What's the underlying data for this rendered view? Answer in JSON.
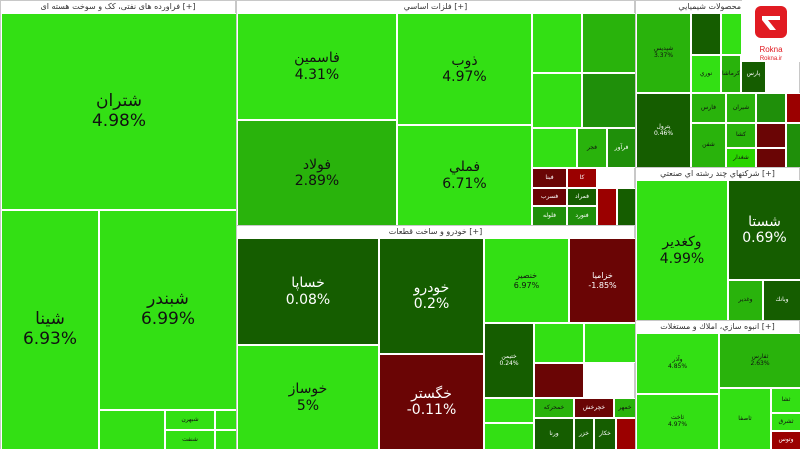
{
  "colors": {
    "bright": "#33e014",
    "light": "#2ad400",
    "mid": "#29b30c",
    "green": "#1f8f0a",
    "dark": "#155d00",
    "red": "#9b0000",
    "darkred": "#6a0505"
  },
  "panels": [
    {
      "id": "p1",
      "title": "فراورده های نفتی، کک و سوخت هسته ای [+]",
      "tiles": [
        {
          "sym": "شتران",
          "pct": "4.98%",
          "c": "bright",
          "s": "s-xl"
        },
        {
          "sym": "شينا",
          "pct": "6.93%",
          "c": "bright",
          "s": "s-xl"
        },
        {
          "sym": "شبندر",
          "pct": "6.99%",
          "c": "bright",
          "s": "s-xl"
        },
        {
          "sym": "",
          "pct": "",
          "c": "bright",
          "s": "s-xs"
        },
        {
          "sym": "شبهرن",
          "pct": "",
          "c": "bright",
          "s": "s-xs"
        },
        {
          "sym": "شنفت",
          "pct": "",
          "c": "bright",
          "s": "s-xs"
        },
        {
          "sym": "",
          "pct": "",
          "c": "bright",
          "s": "s-xs"
        },
        {
          "sym": "",
          "pct": "",
          "c": "bright",
          "s": "s-xs"
        }
      ]
    },
    {
      "id": "p2",
      "title": "فلزات اساسي [+]",
      "tiles": [
        {
          "sym": "فاسمين",
          "pct": "4.31%",
          "c": "bright",
          "s": "s-l"
        },
        {
          "sym": "ذوب",
          "pct": "4.97%",
          "c": "bright",
          "s": "s-l"
        },
        {
          "sym": "",
          "pct": "",
          "c": "bright",
          "s": "s-xs"
        },
        {
          "sym": "",
          "pct": "",
          "c": "mid",
          "s": "s-xs"
        },
        {
          "sym": "فولاد",
          "pct": "2.89%",
          "c": "mid",
          "s": "s-l"
        },
        {
          "sym": "",
          "pct": "",
          "c": "bright",
          "s": "s-xs"
        },
        {
          "sym": "",
          "pct": "",
          "c": "green",
          "s": "s-xs"
        },
        {
          "sym": "فملي",
          "pct": "6.71%",
          "c": "bright",
          "s": "s-l"
        },
        {
          "sym": "",
          "pct": "",
          "c": "bright",
          "s": "s-xs"
        },
        {
          "sym": "فجر",
          "pct": "",
          "c": "mid",
          "s": "s-xs"
        },
        {
          "sym": "فرآور",
          "pct": "",
          "c": "green",
          "s": "s-xs"
        },
        {
          "sym": "فبنا",
          "pct": "",
          "c": "darkred",
          "s": "s-xs"
        },
        {
          "sym": "كا",
          "pct": "",
          "c": "red",
          "s": "s-xs"
        },
        {
          "sym": "فسرب",
          "pct": "",
          "c": "darkred",
          "s": "s-xs"
        },
        {
          "sym": "فمراد",
          "pct": "",
          "c": "dark",
          "s": "s-xs"
        },
        {
          "sym": "فلوله",
          "pct": "",
          "c": "green",
          "s": "s-xs"
        },
        {
          "sym": "فنورد",
          "pct": "",
          "c": "green",
          "s": "s-xs"
        },
        {
          "sym": "",
          "pct": "",
          "c": "red",
          "s": "s-xs"
        },
        {
          "sym": "",
          "pct": "",
          "c": "dark",
          "s": "s-xs"
        }
      ]
    },
    {
      "id": "p3",
      "title": "محصولات شيميايي [+]",
      "tiles": [
        {
          "sym": "شپديس",
          "pct": "3.37%",
          "c": "mid",
          "s": "s-xs"
        },
        {
          "sym": "",
          "pct": "",
          "c": "dark",
          "s": "s-xs"
        },
        {
          "sym": "",
          "pct": "",
          "c": "bright",
          "s": "s-xs"
        },
        {
          "sym": "نوري",
          "pct": "",
          "c": "bright",
          "s": "s-xs"
        },
        {
          "sym": "كرماشا",
          "pct": "",
          "c": "mid",
          "s": "s-xs"
        },
        {
          "sym": "پارس",
          "pct": "",
          "c": "dark",
          "s": "s-xs"
        },
        {
          "sym": "شپنا",
          "pct": "",
          "c": "mid",
          "s": "s-xs"
        },
        {
          "sym": "پترول",
          "pct": "0.46%",
          "c": "dark",
          "s": "s-xs"
        },
        {
          "sym": "فارس",
          "pct": "",
          "c": "mid",
          "s": "s-xs"
        },
        {
          "sym": "شيران",
          "pct": "",
          "c": "mid",
          "s": "s-xs"
        },
        {
          "sym": "كشا",
          "pct": "",
          "c": "mid",
          "s": "s-xs"
        },
        {
          "sym": "شفن",
          "pct": "",
          "c": "mid",
          "s": "s-xs"
        },
        {
          "sym": "شغدار",
          "pct": "",
          "c": "light",
          "s": "s-xs"
        },
        {
          "sym": "",
          "pct": "",
          "c": "green",
          "s": "s-xs"
        },
        {
          "sym": "",
          "pct": "",
          "c": "darkred",
          "s": "s-xs"
        },
        {
          "sym": "",
          "pct": "",
          "c": "red",
          "s": "s-xs"
        },
        {
          "sym": "",
          "pct": "",
          "c": "darkred",
          "s": "s-xs"
        },
        {
          "sym": "",
          "pct": "",
          "c": "green",
          "s": "s-xs"
        }
      ]
    },
    {
      "id": "p4",
      "title": "خودرو و ساخت قطعات [+]",
      "tiles": [
        {
          "sym": "خساپا",
          "pct": "0.08%",
          "c": "dark",
          "s": "s-l"
        },
        {
          "sym": "خودرو",
          "pct": "0.2%",
          "c": "dark",
          "s": "s-l"
        },
        {
          "sym": "خنصير",
          "pct": "6.97%",
          "c": "bright",
          "s": "s-s"
        },
        {
          "sym": "خزاميا",
          "pct": "-1.85%",
          "c": "darkred",
          "s": "s-s"
        },
        {
          "sym": "خوساز",
          "pct": "5%",
          "c": "bright",
          "s": "s-l"
        },
        {
          "sym": "خگستر",
          "pct": "-0.11%",
          "c": "darkred",
          "s": "s-l"
        },
        {
          "sym": "ختيمن",
          "pct": "0.24%",
          "c": "dark",
          "s": "s-xs"
        },
        {
          "sym": "",
          "pct": "",
          "c": "bright",
          "s": "s-xs"
        },
        {
          "sym": "",
          "pct": "",
          "c": "bright",
          "s": "s-xs"
        },
        {
          "sym": "",
          "pct": "",
          "c": "darkred",
          "s": "s-xs"
        },
        {
          "sym": "خمحركه",
          "pct": "",
          "c": "mid",
          "s": "s-xs"
        },
        {
          "sym": "خچرخش",
          "pct": "",
          "c": "darkred",
          "s": "s-xs"
        },
        {
          "sym": "خزر",
          "pct": "",
          "c": "dark",
          "s": "s-xs"
        },
        {
          "sym": "",
          "pct": "",
          "c": "bright",
          "s": "s-xs"
        },
        {
          "sym": "",
          "pct": "",
          "c": "bright",
          "s": "s-xs"
        },
        {
          "sym": "ورنا",
          "pct": "",
          "c": "dark",
          "s": "s-xs"
        },
        {
          "sym": "خكار",
          "pct": "",
          "c": "dark",
          "s": "s-xs"
        },
        {
          "sym": "خمهر",
          "pct": "",
          "c": "mid",
          "s": "s-xs"
        },
        {
          "sym": "",
          "pct": "",
          "c": "red",
          "s": "s-xs"
        }
      ]
    },
    {
      "id": "p5",
      "title": "شركتهاي چند رشته اي صنعتي [+]",
      "tiles": [
        {
          "sym": "وكغدير",
          "pct": "4.99%",
          "c": "bright",
          "s": "s-l"
        },
        {
          "sym": "شستا",
          "pct": "0.69%",
          "c": "dark",
          "s": "s-l"
        },
        {
          "sym": "وغدير",
          "pct": "",
          "c": "mid",
          "s": "s-xs"
        },
        {
          "sym": "وبانك",
          "pct": "",
          "c": "dark",
          "s": "s-xs"
        }
      ]
    },
    {
      "id": "p6",
      "title": "انبوه سازي، املاك و مستغلات [+]",
      "tiles": [
        {
          "sym": "وآذر",
          "pct": "4.85%",
          "c": "bright",
          "s": "s-xs"
        },
        {
          "sym": "ثفارس",
          "pct": "2.63%",
          "c": "mid",
          "s": "s-xs"
        },
        {
          "sym": "ثاخت",
          "pct": "4.97%",
          "c": "bright",
          "s": "s-xs"
        },
        {
          "sym": "ثاصفا",
          "pct": "",
          "c": "bright",
          "s": "s-xs"
        },
        {
          "sym": "ثشا",
          "pct": "",
          "c": "bright",
          "s": "s-xs"
        },
        {
          "sym": "ثشرق",
          "pct": "",
          "c": "bright",
          "s": "s-xs"
        },
        {
          "sym": "وتوس",
          "pct": "",
          "c": "red",
          "s": "s-xs"
        }
      ]
    }
  ],
  "logo": {
    "name": "Rokna",
    "site": "Rokna.ir"
  }
}
